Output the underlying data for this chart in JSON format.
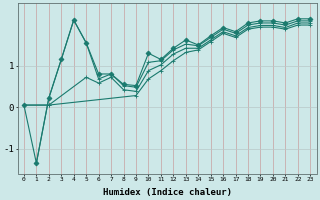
{
  "xlabel": "Humidex (Indice chaleur)",
  "ylabel": "",
  "bg_color": "#cde8e8",
  "line_color": "#1a7a6e",
  "xlim": [
    -0.5,
    23.5
  ],
  "ylim": [
    -1.6,
    2.5
  ],
  "yticks": [
    -1,
    0,
    1
  ],
  "xticks": [
    0,
    1,
    2,
    3,
    4,
    5,
    6,
    7,
    8,
    9,
    10,
    11,
    12,
    13,
    14,
    15,
    16,
    17,
    18,
    19,
    20,
    21,
    22,
    23
  ],
  "series": [
    {
      "x": [
        0,
        1,
        2,
        3,
        4,
        5,
        6,
        7,
        8,
        9,
        10,
        11,
        12,
        13,
        14,
        15,
        16,
        17,
        18,
        19,
        20,
        21,
        22,
        23
      ],
      "y": [
        0.05,
        -1.35,
        0.22,
        1.15,
        2.1,
        1.55,
        0.8,
        0.8,
        0.55,
        0.52,
        1.3,
        1.15,
        1.42,
        1.62,
        1.5,
        1.72,
        1.92,
        1.82,
        2.03,
        2.08,
        2.08,
        2.03,
        2.13,
        2.13
      ],
      "marker": "D",
      "ms": 2.5
    },
    {
      "x": [
        1,
        2,
        3,
        4,
        5,
        6,
        7,
        8,
        9,
        10,
        11,
        12,
        13,
        14,
        15,
        16,
        17,
        18,
        19,
        20,
        21,
        22,
        23
      ],
      "y": [
        -1.35,
        0.22,
        1.15,
        2.1,
        1.55,
        0.68,
        0.8,
        0.52,
        0.48,
        1.08,
        1.12,
        1.38,
        1.52,
        1.48,
        1.68,
        1.88,
        1.78,
        1.98,
        2.03,
        2.03,
        1.98,
        2.08,
        2.08
      ],
      "marker": "+",
      "ms": 3.0
    },
    {
      "x": [
        0,
        2,
        5,
        6,
        7,
        8,
        9,
        10,
        11,
        12,
        13,
        14,
        15,
        16,
        17,
        18,
        19,
        20,
        21,
        22,
        23
      ],
      "y": [
        0.05,
        0.05,
        0.72,
        0.58,
        0.72,
        0.42,
        0.38,
        0.88,
        1.02,
        1.28,
        1.42,
        1.42,
        1.62,
        1.82,
        1.72,
        1.92,
        1.97,
        1.97,
        1.92,
        2.03,
        2.03
      ],
      "marker": "+",
      "ms": 3.0
    },
    {
      "x": [
        0,
        2,
        9,
        10,
        11,
        12,
        13,
        14,
        15,
        16,
        17,
        18,
        19,
        20,
        21,
        22,
        23
      ],
      "y": [
        0.05,
        0.05,
        0.28,
        0.68,
        0.88,
        1.12,
        1.32,
        1.38,
        1.58,
        1.78,
        1.68,
        1.88,
        1.93,
        1.93,
        1.88,
        1.98,
        1.98
      ],
      "marker": "+",
      "ms": 3.0
    }
  ]
}
